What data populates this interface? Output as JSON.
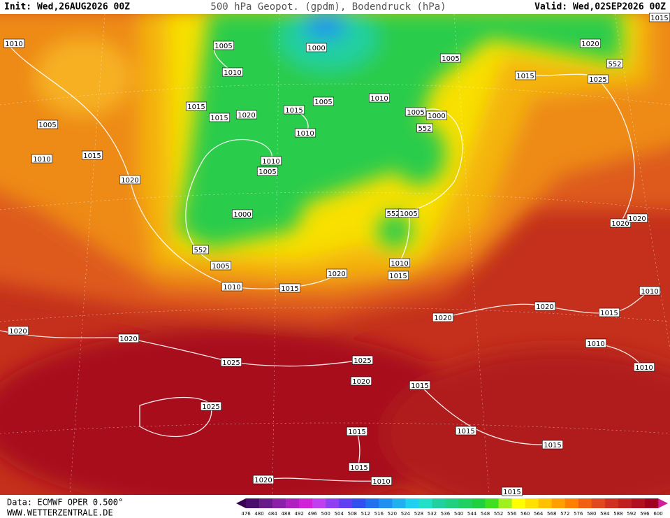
{
  "header": {
    "init": "Init: Wed,26AUG2026 00Z",
    "title": "500 hPa Geopot. (gpdm), Bodendruck (hPa)",
    "valid": "Valid: Wed,02SEP2026 00Z"
  },
  "footer": {
    "source": "Data: ECMWF OPER 0.500°",
    "website": "WWW.WETTERZENTRALE.DE"
  },
  "isobar_labels": [
    "1010",
    "1005",
    "1000",
    "1010",
    "1005",
    "1020",
    "552",
    "1015",
    "1025",
    "1005",
    "1010",
    "1015",
    "1015",
    "1020",
    "1015",
    "1005",
    "1000",
    "552",
    "1010",
    "1005",
    "1015",
    "1010",
    "1010",
    "1005",
    "1020",
    "1000",
    "552",
    "1005",
    "552",
    "1005",
    "1010",
    "1020",
    "1015",
    "1010",
    "1015",
    "1020",
    "1020",
    "1010",
    "1020",
    "1015",
    "1020",
    "1010",
    "1020",
    "1020",
    "1025",
    "1025",
    "1010",
    "1020",
    "1015",
    "1025",
    "1015",
    "1015",
    "1015",
    "1015",
    "1010",
    "1020",
    "1015",
    "1015"
  ],
  "colorbar": {
    "labels": [
      476,
      480,
      484,
      488,
      492,
      496,
      500,
      504,
      508,
      512,
      516,
      520,
      524,
      528,
      532,
      536,
      540,
      544,
      548,
      552,
      556,
      560,
      564,
      568,
      572,
      576,
      580,
      584,
      588,
      592,
      596,
      600
    ],
    "colors": [
      "#4b0d6b",
      "#6a1b8a",
      "#8b1fa8",
      "#b020c0",
      "#d020d8",
      "#c040f0",
      "#9040f0",
      "#6040f0",
      "#3050f0",
      "#2070f0",
      "#2090f0",
      "#20b0f0",
      "#20d0f0",
      "#20e0c8",
      "#20d0a0",
      "#20d080",
      "#20d060",
      "#20d040",
      "#40e020",
      "#a0f020",
      "#ffff00",
      "#ffe000",
      "#ffc000",
      "#ffa000",
      "#ff8000",
      "#f06010",
      "#e04820",
      "#d03020",
      "#c02020",
      "#b01020",
      "#a00020"
    ]
  }
}
